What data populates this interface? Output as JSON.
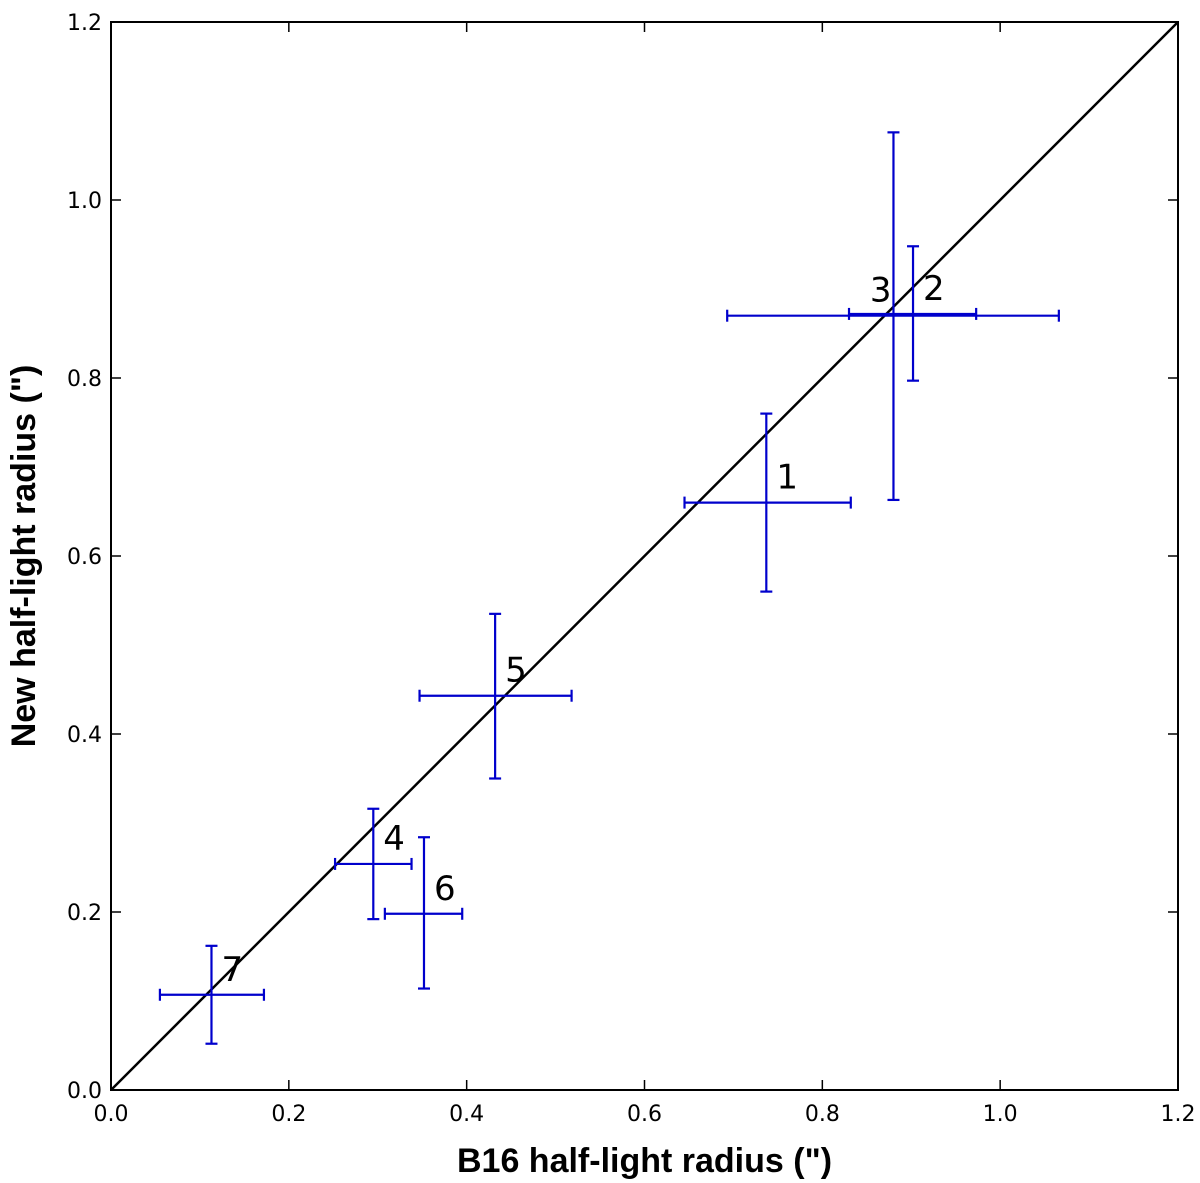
{
  "chart_data": {
    "type": "scatter",
    "title": "",
    "xlabel": "B16 half-light radius (\")",
    "ylabel": "New half-light radius (\")",
    "xlim": [
      0.0,
      1.2
    ],
    "ylim": [
      0.0,
      1.2
    ],
    "xticks": [
      "0.0",
      "0.2",
      "0.4",
      "0.6",
      "0.8",
      "1.0",
      "1.2"
    ],
    "yticks": [
      "0.0",
      "0.2",
      "0.4",
      "0.6",
      "0.8",
      "1.0",
      "1.2"
    ],
    "grid": false,
    "reference_line": {
      "x": [
        0.0,
        1.2
      ],
      "y": [
        0.0,
        1.2
      ],
      "color": "#000000"
    },
    "series": [
      {
        "color": "#0000cc",
        "points": [
          {
            "label": "1",
            "x": 0.737,
            "y": 0.66,
            "xerr": [
              0.645,
              0.832
            ],
            "yerr": [
              0.56,
              0.76
            ]
          },
          {
            "label": "2",
            "x": 0.902,
            "y": 0.872,
            "xerr": [
              0.83,
              0.973
            ],
            "yerr": [
              0.797,
              0.948
            ]
          },
          {
            "label": "3",
            "x": 0.88,
            "y": 0.87,
            "xerr": [
              0.693,
              1.066
            ],
            "yerr": [
              0.663,
              1.076
            ]
          },
          {
            "label": "4",
            "x": 0.295,
            "y": 0.254,
            "xerr": [
              0.252,
              0.338
            ],
            "yerr": [
              0.192,
              0.316
            ]
          },
          {
            "label": "5",
            "x": 0.432,
            "y": 0.443,
            "xerr": [
              0.347,
              0.518
            ],
            "yerr": [
              0.35,
              0.535
            ]
          },
          {
            "label": "6",
            "x": 0.352,
            "y": 0.198,
            "xerr": [
              0.308,
              0.395
            ],
            "yerr": [
              0.114,
              0.284
            ]
          },
          {
            "label": "7",
            "x": 0.113,
            "y": 0.107,
            "xerr": [
              0.055,
              0.172
            ],
            "yerr": [
              0.052,
              0.162
            ]
          }
        ]
      }
    ]
  }
}
